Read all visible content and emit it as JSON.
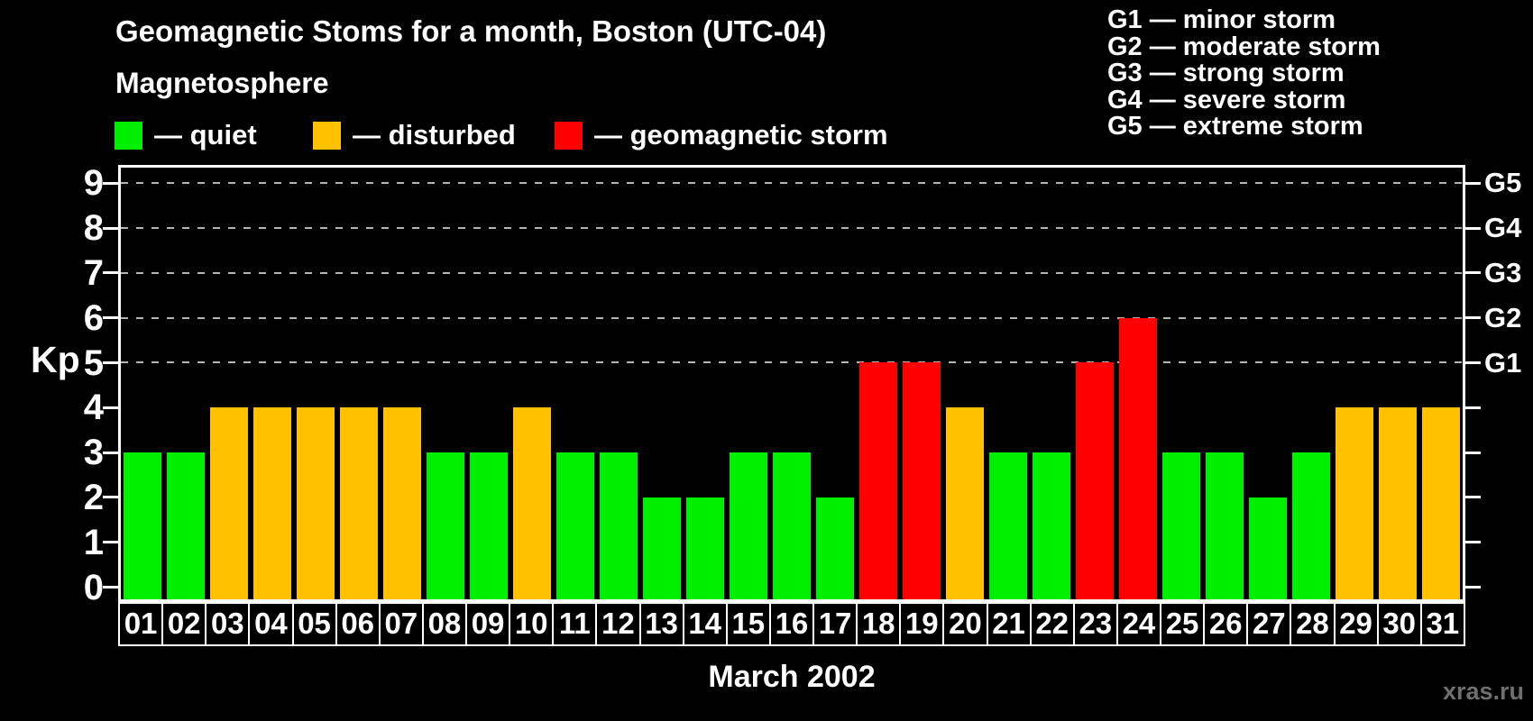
{
  "title": "Geomagnetic Stoms for a month, Boston (UTC-04)",
  "legend": {
    "heading": "Magnetosphere",
    "items": [
      {
        "key": "quiet",
        "label": "— quiet"
      },
      {
        "key": "disturbed",
        "label": "— disturbed"
      },
      {
        "key": "storm",
        "label": "— geomagnetic storm"
      }
    ]
  },
  "g_legend": [
    "G1 — minor storm",
    "G2 — moderate storm",
    "G3 — strong storm",
    "G4 — severe storm",
    "G5 — extreme storm"
  ],
  "colors": {
    "quiet": "#00ee00",
    "disturbed": "#ffc000",
    "storm": "#ff0000",
    "gridline": "#b4b4b4",
    "axis": "#ffffff",
    "background": "#000000"
  },
  "chart_data": {
    "type": "bar",
    "title": "Geomagnetic Stoms for a month, Boston (UTC-04)",
    "xlabel": "March 2002",
    "ylabel": "Kp",
    "ylim": [
      0,
      9
    ],
    "grid": "dashed horizontal lines at Kp 5-9 only",
    "legend_position": "top",
    "categories": [
      "01",
      "02",
      "03",
      "04",
      "05",
      "06",
      "07",
      "08",
      "09",
      "10",
      "11",
      "12",
      "13",
      "14",
      "15",
      "16",
      "17",
      "18",
      "19",
      "20",
      "21",
      "22",
      "23",
      "24",
      "25",
      "26",
      "27",
      "28",
      "29",
      "30",
      "31"
    ],
    "values": [
      3,
      3,
      4,
      4,
      4,
      4,
      4,
      3,
      3,
      4,
      3,
      3,
      2,
      2,
      3,
      3,
      2,
      5,
      5,
      4,
      3,
      3,
      5,
      6,
      3,
      3,
      2,
      3,
      4,
      4,
      4
    ],
    "statuses": [
      "quiet",
      "quiet",
      "disturbed",
      "disturbed",
      "disturbed",
      "disturbed",
      "disturbed",
      "quiet",
      "quiet",
      "disturbed",
      "quiet",
      "quiet",
      "quiet",
      "quiet",
      "quiet",
      "quiet",
      "quiet",
      "storm",
      "storm",
      "disturbed",
      "quiet",
      "quiet",
      "storm",
      "storm",
      "quiet",
      "quiet",
      "quiet",
      "quiet",
      "disturbed",
      "disturbed",
      "disturbed"
    ],
    "y_ticks_left": [
      0,
      1,
      2,
      3,
      4,
      5,
      6,
      7,
      8,
      9
    ],
    "right_axis_ticks": [
      0,
      1,
      2,
      3,
      4,
      5,
      6,
      7,
      8,
      9
    ],
    "right_axis_labels": [
      {
        "kp": 5,
        "label": "G1"
      },
      {
        "kp": 6,
        "label": "G2"
      },
      {
        "kp": 7,
        "label": "G3"
      },
      {
        "kp": 8,
        "label": "G4"
      },
      {
        "kp": 9,
        "label": "G5"
      }
    ],
    "gridlines_at": [
      5,
      6,
      7,
      8,
      9
    ]
  },
  "watermark": "xras.ru"
}
